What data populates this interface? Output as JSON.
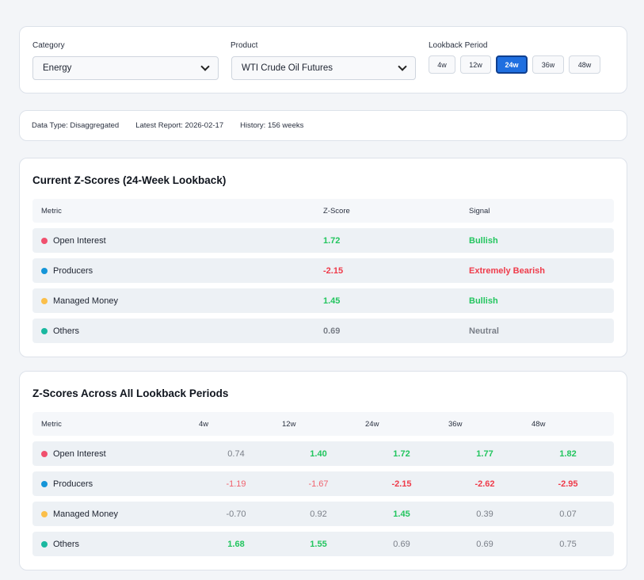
{
  "controls": {
    "category_label": "Category",
    "category_value": "Energy",
    "product_label": "Product",
    "product_value": "WTI Crude Oil Futures",
    "lookback_label": "Lookback Period",
    "periods": [
      "4w",
      "12w",
      "24w",
      "36w",
      "48w"
    ],
    "active_period": "24w"
  },
  "info": {
    "data_type": "Data Type: Disaggregated",
    "latest_report": "Latest Report: 2026-02-17",
    "history": "History: 156 weeks"
  },
  "current": {
    "title": "Current Z-Scores (24-Week Lookback)",
    "headers": [
      "Metric",
      "Z-Score",
      "Signal"
    ],
    "rows": [
      {
        "metric": "Open Interest",
        "dot": "#f0506e",
        "z": "1.72",
        "signal": "Bullish",
        "tone": "pos"
      },
      {
        "metric": "Producers",
        "dot": "#1595d8",
        "z": "-2.15",
        "signal": "Extremely Bearish",
        "tone": "neg"
      },
      {
        "metric": "Managed Money",
        "dot": "#fbbf4a",
        "z": "1.45",
        "signal": "Bullish",
        "tone": "pos"
      },
      {
        "metric": "Others",
        "dot": "#1ab8a0",
        "z": "0.69",
        "signal": "Neutral",
        "tone": "neu"
      }
    ]
  },
  "all": {
    "title": "Z-Scores Across All Lookback Periods",
    "headers": [
      "Metric",
      "4w",
      "12w",
      "24w",
      "36w",
      "48w"
    ],
    "rows": [
      {
        "metric": "Open Interest",
        "dot": "#f0506e",
        "values": [
          [
            "0.74",
            "neu"
          ],
          [
            "1.40",
            "pos"
          ],
          [
            "1.72",
            "pos"
          ],
          [
            "1.77",
            "pos"
          ],
          [
            "1.82",
            "pos"
          ]
        ]
      },
      {
        "metric": "Producers",
        "dot": "#1595d8",
        "values": [
          [
            "-1.19",
            "negl"
          ],
          [
            "-1.67",
            "negl"
          ],
          [
            "-2.15",
            "neg"
          ],
          [
            "-2.62",
            "neg"
          ],
          [
            "-2.95",
            "neg"
          ]
        ]
      },
      {
        "metric": "Managed Money",
        "dot": "#fbbf4a",
        "values": [
          [
            "-0.70",
            "neu"
          ],
          [
            "0.92",
            "neu"
          ],
          [
            "1.45",
            "pos"
          ],
          [
            "0.39",
            "neu"
          ],
          [
            "0.07",
            "neu"
          ]
        ]
      },
      {
        "metric": "Others",
        "dot": "#1ab8a0",
        "values": [
          [
            "1.68",
            "pos"
          ],
          [
            "1.55",
            "pos"
          ],
          [
            "0.69",
            "neu"
          ],
          [
            "0.69",
            "neu"
          ],
          [
            "0.75",
            "neu"
          ]
        ]
      }
    ]
  }
}
